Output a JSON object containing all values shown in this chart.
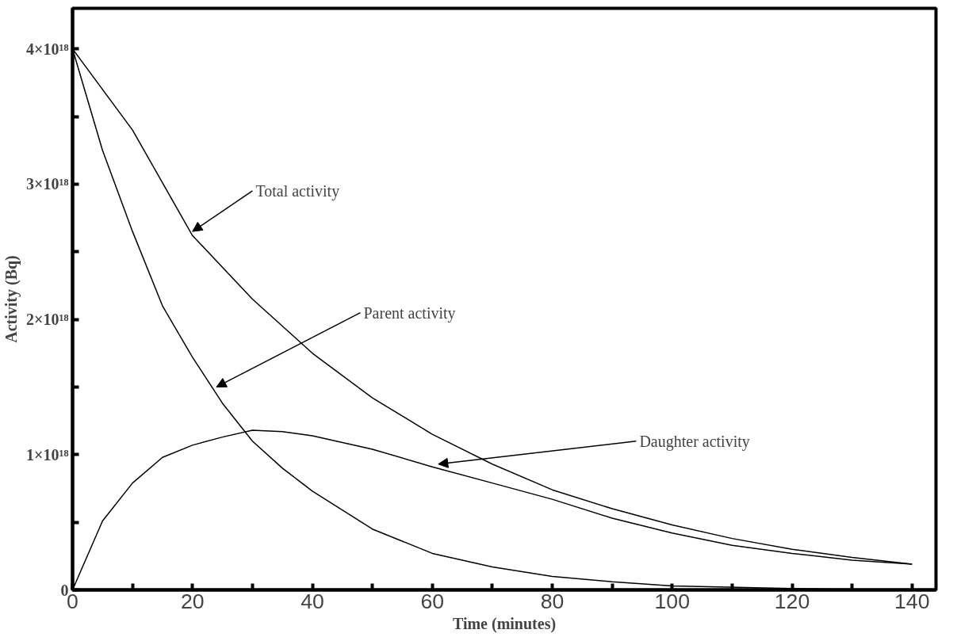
{
  "chart_data": {
    "type": "line",
    "xlabel": "Time (minutes)",
    "ylabel": "Activity (Bq)",
    "xlim": [
      0,
      144
    ],
    "ylim": [
      0,
      4.3e+18
    ],
    "xticks": [
      0,
      {
        "value": 10,
        "label": null
      },
      20,
      {
        "value": 30,
        "label": null
      },
      40,
      {
        "value": 50,
        "label": null
      },
      60,
      {
        "value": 70,
        "label": null
      },
      80,
      {
        "value": 90,
        "label": null
      },
      100,
      {
        "value": 110,
        "label": null
      },
      120,
      {
        "value": 130,
        "label": null
      },
      140
    ],
    "yticks": [
      0,
      {
        "value": 5e+17,
        "label": null
      },
      {
        "value": 1e+18,
        "label": "1×10¹⁸"
      },
      {
        "value": 1.5e+18,
        "label": null
      },
      {
        "value": 2e+18,
        "label": "2×10¹⁸"
      },
      {
        "value": 2.5e+18,
        "label": null
      },
      {
        "value": 3e+18,
        "label": "3×10¹⁸"
      },
      {
        "value": 3.5e+18,
        "label": null
      },
      {
        "value": 4e+18,
        "label": "4×10¹⁸"
      }
    ],
    "grid": false,
    "marker": "none",
    "line_style": "solid",
    "series": [
      {
        "color": "#000000",
        "x": [
          0,
          10,
          20,
          30,
          40,
          50,
          60,
          70,
          80,
          90,
          100,
          110,
          120,
          130,
          140
        ],
        "values": [
          4e+18,
          3.4e+18,
          2.62e+18,
          2.15e+18,
          1.75e+18,
          1.42e+18,
          1.15e+18,
          9.3e+17,
          7.4e+17,
          6e+17,
          4.8e+17,
          3.8e+17,
          3e+17,
          2.4e+17,
          1.9e+17
        ]
      },
      {
        "color": "#000000",
        "x": [
          0,
          5,
          10,
          15,
          20,
          25,
          30,
          35,
          40,
          50,
          60,
          70,
          80,
          90,
          100,
          120,
          140
        ],
        "values": [
          4e+18,
          3.25e+18,
          2.65e+18,
          2.1e+18,
          1.72e+18,
          1.38e+18,
          1.1e+18,
          9e+17,
          7.3e+17,
          4.5e+17,
          2.7e+17,
          1.7e+17,
          1e+17,
          6e+16,
          3e+16,
          1e+16,
          0.0
        ]
      },
      {
        "color": "#000000",
        "x": [
          0,
          5,
          10,
          15,
          20,
          25,
          30,
          35,
          40,
          50,
          60,
          70,
          80,
          90,
          100,
          110,
          120,
          130,
          140
        ],
        "values": [
          0,
          5.1e+17,
          7.9e+17,
          9.8e+17,
          1.07e+18,
          1.13e+18,
          1.18e+18,
          1.17e+18,
          1.14e+18,
          1.04e+18,
          9.1e+17,
          7.9e+17,
          6.7e+17,
          5.3e+17,
          4.2e+17,
          3.3e+17,
          2.7e+17,
          2.2e+17,
          1.9e+17
        ]
      }
    ],
    "annotations": [
      {
        "text": "Total activity",
        "x": 20,
        "y": 2.65e+18
      },
      {
        "text": "Parent activity",
        "x": 24,
        "y": 1.5e+18
      },
      {
        "text": "Daughter activity",
        "x": 61,
        "y": 9.3e+17
      }
    ]
  }
}
